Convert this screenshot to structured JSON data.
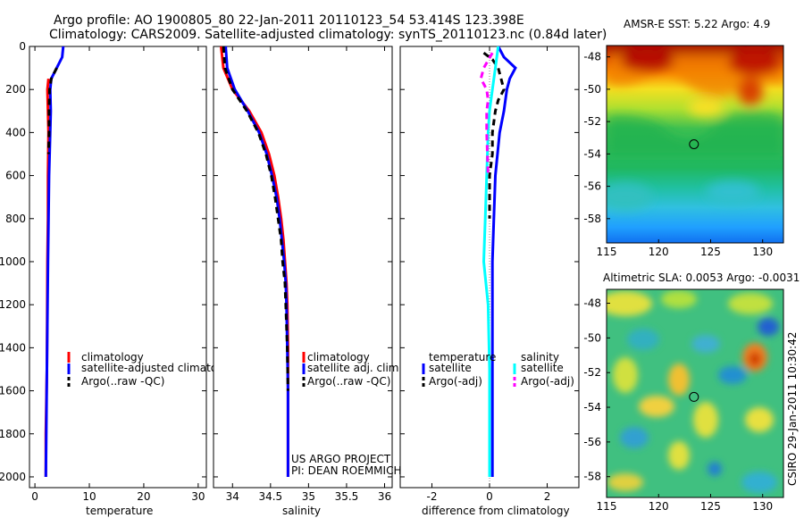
{
  "title": {
    "line1": "Argo profile: AO 1900805_80 22-Jan-2011 20110123_54 53.414S 123.398E",
    "line2": "Climatology: CARS2009. Satellite-adjusted climatology: synTS_20110123.nc (0.84d later)"
  },
  "side_label": "CSIRO 29-Jan-2011 10:30:42",
  "credit": {
    "line1": "US ARGO PROJECT",
    "line2": "PI: DEAN ROEMMICH"
  },
  "colors": {
    "climatology": "#ff0000",
    "satellite": "#0000ff",
    "argo": "#000000",
    "salinity_satellite": "#00ffff",
    "salinity_argo": "#ff00ff"
  },
  "chart_data": [
    {
      "type": "line",
      "name": "temperature-panel",
      "xlabel": "temperature",
      "ylabel": "",
      "xlim": [
        -1,
        31.5
      ],
      "ylim": [
        2050,
        0
      ],
      "xticks": [
        0,
        10,
        20,
        30
      ],
      "yticks": [
        0,
        200,
        400,
        600,
        800,
        1000,
        1200,
        1400,
        1600,
        1800,
        2000
      ],
      "legend": [
        "climatology",
        "satellite-adjusted climatolog",
        "Argo(..raw -QC)"
      ],
      "series": [
        {
          "name": "climatology",
          "style": "solid",
          "color": "#ff0000",
          "depth": [
            150,
            200,
            300,
            400,
            600,
            800,
            1000,
            1500,
            1800,
            2000
          ],
          "values": [
            2.5,
            2.3,
            2.4,
            2.5,
            2.4,
            2.4,
            2.3,
            2.2,
            2.0,
            2.0
          ]
        },
        {
          "name": "satellite-adjusted climatology",
          "style": "solid",
          "color": "#0000ff",
          "depth": [
            0,
            50,
            100,
            150,
            200,
            300,
            400,
            600,
            800,
            1000,
            1500,
            2000
          ],
          "values": [
            5.2,
            5.0,
            4.0,
            3.0,
            2.8,
            2.9,
            2.8,
            2.6,
            2.5,
            2.4,
            2.2,
            2.0
          ]
        },
        {
          "name": "Argo(..raw -QC)",
          "style": "dashed",
          "color": "#000000",
          "depth": [
            100,
            150,
            200,
            300,
            400,
            500
          ],
          "values": [
            4.0,
            3.0,
            2.7,
            2.6,
            2.6,
            2.5
          ]
        }
      ]
    },
    {
      "type": "line",
      "name": "salinity-panel",
      "xlabel": "salinity",
      "ylabel": "",
      "xlim": [
        33.75,
        36.1
      ],
      "ylim": [
        2050,
        0
      ],
      "xticks": [
        34,
        34.5,
        35,
        35.5,
        36
      ],
      "legend": [
        "climatology",
        "satellite adj. clim.",
        "Argo(..raw -QC)"
      ],
      "series": [
        {
          "name": "climatology",
          "style": "solid",
          "color": "#ff0000",
          "depth": [
            0,
            100,
            200,
            300,
            400,
            500,
            600,
            700,
            800,
            900,
            1000,
            1100,
            1200,
            1400,
            1600,
            1800,
            2000
          ],
          "values": [
            33.85,
            33.88,
            34.0,
            34.22,
            34.38,
            34.48,
            34.55,
            34.6,
            34.64,
            34.67,
            34.69,
            34.71,
            34.72,
            34.73,
            34.73,
            34.73,
            34.73
          ]
        },
        {
          "name": "satellite adj. clim.",
          "style": "solid",
          "color": "#0000ff",
          "depth": [
            0,
            100,
            200,
            300,
            400,
            500,
            600,
            700,
            800,
            900,
            1000,
            1100,
            1200,
            1400,
            1600,
            1800,
            2000
          ],
          "values": [
            33.91,
            33.93,
            34.03,
            34.2,
            34.35,
            34.45,
            34.52,
            34.58,
            34.62,
            34.65,
            34.68,
            34.7,
            34.71,
            34.72,
            34.73,
            34.73,
            34.73
          ]
        },
        {
          "name": "Argo(..raw -QC)",
          "style": "dashed",
          "color": "#000000",
          "depth": [
            0,
            100,
            200,
            300,
            400,
            500,
            600,
            700,
            800,
            900,
            1000,
            1100,
            1200,
            1400,
            1600
          ],
          "values": [
            33.88,
            33.9,
            34.0,
            34.19,
            34.34,
            34.44,
            34.51,
            34.56,
            34.6,
            34.64,
            34.66,
            34.69,
            34.7,
            34.72,
            34.73
          ]
        }
      ]
    },
    {
      "type": "line",
      "name": "difference-panel",
      "xlabel": "difference from climatology",
      "ylabel": "",
      "xlim": [
        -3.1,
        3.1
      ],
      "ylim": [
        2050,
        0
      ],
      "xticks": [
        -2,
        0,
        2
      ],
      "legend_headers": [
        "temperature",
        "salinity"
      ],
      "legend": [
        "satellite",
        "Argo(-adj)",
        "satellite",
        "Argo(-adj)"
      ],
      "series": [
        {
          "name": "temperature satellite",
          "style": "solid",
          "color": "#0000ff",
          "depth": [
            0,
            50,
            100,
            150,
            200,
            300,
            400,
            600,
            800,
            1000,
            1500,
            2000
          ],
          "values": [
            0.3,
            0.5,
            0.9,
            0.7,
            0.6,
            0.5,
            0.35,
            0.2,
            0.15,
            0.1,
            0.1,
            0.1
          ]
        },
        {
          "name": "temperature Argo(-adj)",
          "style": "dashed",
          "color": "#000000",
          "depth": [
            30,
            60,
            100,
            150,
            200,
            250,
            300,
            400,
            500,
            600,
            800
          ],
          "values": [
            -0.2,
            0.1,
            0.3,
            0.4,
            0.5,
            0.3,
            0.2,
            0.1,
            0.1,
            0.0,
            0.0
          ]
        },
        {
          "name": "salinity satellite",
          "style": "solid",
          "color": "#00ffff",
          "depth": [
            0,
            50,
            100,
            200,
            300,
            400,
            600,
            800,
            1000,
            1200,
            1500,
            2000
          ],
          "values": [
            0.3,
            0.25,
            0.2,
            0.1,
            0.0,
            -0.05,
            -0.1,
            -0.15,
            -0.2,
            -0.05,
            0.0,
            0.0
          ]
        },
        {
          "name": "salinity Argo(-adj)",
          "style": "dashed",
          "color": "#ff00ff",
          "depth": [
            30,
            100,
            150,
            200,
            250,
            300,
            400,
            600
          ],
          "values": [
            0.1,
            -0.2,
            -0.3,
            -0.1,
            -0.05,
            -0.1,
            -0.1,
            -0.05
          ]
        }
      ]
    },
    {
      "type": "heatmap",
      "name": "sst-map",
      "title": "AMSR-E SST: 5.22 Argo: 4.9",
      "xlim": [
        115,
        132
      ],
      "ylim": [
        -59.5,
        -47.3
      ],
      "xticks": [
        115,
        120,
        125,
        130
      ],
      "yticks": [
        -48,
        -50,
        -52,
        -54,
        -56,
        -58
      ],
      "marker": {
        "lon": 123.4,
        "lat": -53.4
      }
    },
    {
      "type": "heatmap",
      "name": "sla-map",
      "title": "Altimetric SLA: 0.0053 Argo: -0.0031",
      "xlim": [
        115,
        132
      ],
      "ylim": [
        -59.2,
        -47.2
      ],
      "xticks": [
        115,
        120,
        125,
        130
      ],
      "yticks": [
        -48,
        -50,
        -52,
        -54,
        -56,
        -58
      ],
      "marker": {
        "lon": 123.4,
        "lat": -53.4
      }
    }
  ]
}
